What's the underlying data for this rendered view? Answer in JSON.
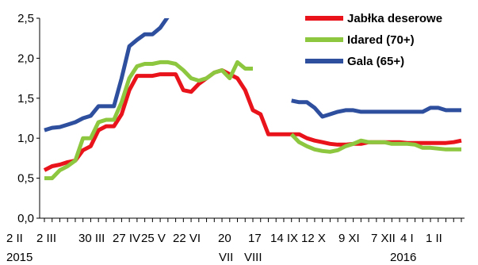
{
  "chart_data": {
    "type": "line",
    "title": "",
    "xlabel": "",
    "ylabel": "",
    "ylim": [
      0,
      2.5
    ],
    "yticks": [
      "0,0",
      "0,5",
      "1,0",
      "1,5",
      "2,0",
      "2,5"
    ],
    "grid": false,
    "legend_position": "top-right",
    "x_tick_labels": [
      "2 II",
      "2 III",
      "30 III",
      "27 IV",
      "25 V",
      "22 VI",
      "20",
      "17",
      "14 IX",
      "12 X",
      "9 XI",
      "7 XII",
      "4 I",
      "1 II"
    ],
    "x_tick_labels_row2": [
      "2015",
      "VII",
      "VIII",
      "2016"
    ],
    "x_positions": [
      0,
      1,
      2,
      3,
      4,
      5,
      6,
      7,
      8,
      9,
      10,
      11,
      12,
      13,
      14,
      15,
      16,
      17,
      18,
      19,
      20,
      21,
      22,
      23,
      24,
      25,
      26,
      27,
      28,
      29,
      30,
      31,
      32,
      33,
      34,
      35,
      36,
      37,
      38,
      39,
      40,
      41,
      42,
      43,
      44,
      45,
      46,
      47,
      48,
      49,
      50,
      51,
      52,
      53,
      54
    ],
    "series": [
      {
        "name": "Jabłka deserowe",
        "color": "#e8131b",
        "values": [
          0.6,
          0.65,
          0.67,
          0.7,
          0.72,
          0.85,
          0.9,
          1.1,
          1.15,
          1.15,
          1.3,
          1.6,
          1.78,
          1.78,
          1.78,
          1.8,
          1.8,
          1.8,
          1.6,
          1.58,
          1.68,
          1.75,
          1.82,
          1.85,
          1.8,
          1.75,
          1.6,
          1.35,
          1.3,
          1.05,
          1.05,
          1.05,
          1.05,
          1.05,
          1.0,
          0.97,
          0.95,
          0.93,
          0.92,
          0.92,
          0.93,
          0.93,
          0.95,
          0.95,
          0.95,
          0.95,
          0.95,
          0.94,
          0.94,
          0.94,
          0.94,
          0.94,
          0.94,
          0.95,
          0.97
        ]
      },
      {
        "name": "Idared (70+)",
        "color": "#8dc63f",
        "values": [
          0.5,
          0.5,
          0.6,
          0.65,
          0.72,
          1.0,
          1.0,
          1.2,
          1.23,
          1.23,
          1.45,
          1.75,
          1.9,
          1.93,
          1.93,
          1.95,
          1.95,
          1.93,
          1.85,
          1.75,
          1.72,
          1.75,
          1.82,
          1.85,
          1.75,
          1.95,
          1.87,
          1.87,
          null,
          null,
          null,
          null,
          1.05,
          0.95,
          0.9,
          0.86,
          0.84,
          0.83,
          0.85,
          0.9,
          0.93,
          0.97,
          0.95,
          0.95,
          0.95,
          0.93,
          0.93,
          0.93,
          0.92,
          0.88,
          0.88,
          0.87,
          0.86,
          0.86,
          0.86
        ]
      },
      {
        "name": "Gala (65+)",
        "color": "#2e4f9e",
        "values": [
          1.1,
          1.13,
          1.14,
          1.17,
          1.2,
          1.25,
          1.28,
          1.4,
          1.4,
          1.4,
          1.75,
          2.15,
          2.23,
          2.3,
          2.3,
          2.38,
          2.52,
          2.55,
          null,
          null,
          null,
          null,
          null,
          null,
          null,
          null,
          null,
          null,
          null,
          null,
          null,
          null,
          1.47,
          1.45,
          1.45,
          1.38,
          1.27,
          1.3,
          1.33,
          1.35,
          1.35,
          1.33,
          1.33,
          1.33,
          1.33,
          1.33,
          1.33,
          1.33,
          1.33,
          1.33,
          1.38,
          1.38,
          1.35,
          1.35,
          1.35
        ]
      }
    ]
  }
}
